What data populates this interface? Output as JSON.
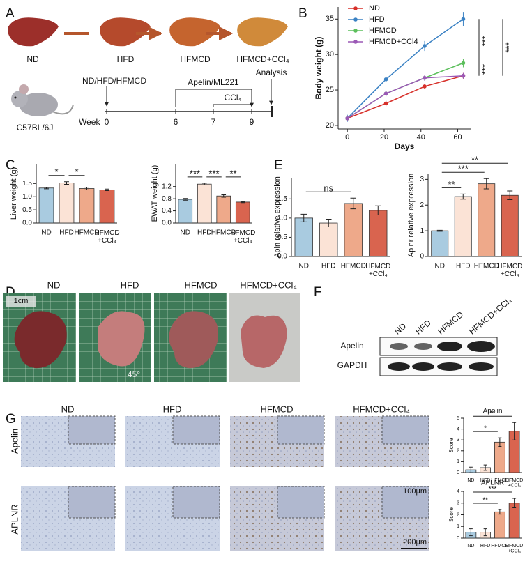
{
  "panel_labels": [
    "A",
    "B",
    "C",
    "D",
    "E",
    "F",
    "G"
  ],
  "panel_a": {
    "diets": [
      "ND",
      "HFD",
      "HFMCD",
      "HFMCD+CCl₄"
    ],
    "strain": "C57BL/6J",
    "diet_label": "ND/HFD/HFMCD",
    "treatment": "Apelin/ML221",
    "ccl4": "CCl₄",
    "analysis": "Analysis",
    "week_label": "Week",
    "weeks": [
      "0",
      "6",
      "7",
      "9"
    ]
  },
  "panel_d": {
    "groups": [
      "ND",
      "HFD",
      "HFMCD",
      "HFMCD+CCl₄"
    ],
    "scale": "1cm",
    "angle": "45°"
  },
  "panel_f": {
    "groups": [
      "ND",
      "HFD",
      "HFMCD",
      "HFMCD+CCl₄"
    ],
    "rows": [
      "Apelin",
      "GAPDH"
    ]
  },
  "panel_g": {
    "groups": [
      "ND",
      "HFD",
      "HFMCD",
      "HFMCD+CCl₄"
    ],
    "rows": [
      "Apelin",
      "APLNR"
    ],
    "scale_bars": [
      "100μm",
      "200μm"
    ]
  },
  "chart_data": [
    {
      "type": "line",
      "x_label": "Days",
      "y_label": "Body weight (g)",
      "x": [
        0,
        21,
        42,
        63
      ],
      "series": [
        {
          "name": "ND",
          "color": "#d7302a",
          "values": [
            21,
            23.1,
            25.5,
            27
          ],
          "errors": [
            0.4,
            0.4,
            0.3,
            0.4
          ]
        },
        {
          "name": "HFD",
          "color": "#3b82c4",
          "values": [
            21,
            26.5,
            31.2,
            35
          ],
          "errors": [
            0.5,
            0.4,
            0.7,
            1.0
          ]
        },
        {
          "name": "HFMCD",
          "color": "#5cbf5c",
          "values": [
            21,
            24.5,
            26.7,
            28.8
          ],
          "errors": [
            0.4,
            0.4,
            0.4,
            0.6
          ]
        },
        {
          "name": "HFMCD+CCl4",
          "color": "#9b59b6",
          "values": [
            21,
            24.5,
            26.7,
            27
          ],
          "errors": [
            0.4,
            0.4,
            0.4,
            0.4
          ]
        }
      ],
      "xlim": [
        -5,
        67
      ],
      "ylim": [
        19.5,
        36.7
      ],
      "xticks": [
        0,
        20,
        40,
        60
      ],
      "yticks": [
        20,
        25,
        30,
        35
      ],
      "legend": "upper left",
      "comparisons": [
        {
          "series": [
            "HFD",
            "HFMCD"
          ],
          "label": "***"
        },
        {
          "series": [
            "HFMCD",
            "HFMCD+CCl4"
          ],
          "label": "***"
        },
        {
          "series": [
            "HFD",
            "HFMCD+CCl4"
          ],
          "label": "***"
        }
      ]
    },
    {
      "type": "bar",
      "y_label": "Liver weight (g)",
      "categories": [
        "ND",
        "HFD",
        "HFMCD",
        "HFMCD\n+CCl₄"
      ],
      "values": [
        1.33,
        1.52,
        1.31,
        1.26
      ],
      "errors": [
        0.03,
        0.05,
        0.05,
        0.03
      ],
      "colors": [
        "#a9cbe0",
        "#fbe3d6",
        "#eea98a",
        "#d9644f"
      ],
      "ylim": [
        0,
        2.25
      ],
      "yticks": [
        {
          "value": 0,
          "label": "0.0"
        },
        {
          "value": 0.5,
          "label": "0.5"
        },
        {
          "value": 1,
          "label": "1.0"
        },
        {
          "value": 1.5,
          "label": "1.5"
        }
      ],
      "comparisons": [
        {
          "groups": [
            "ND",
            "HFD"
          ],
          "label": "*"
        },
        {
          "groups": [
            "HFD",
            "HFMCD"
          ],
          "label": "*"
        }
      ]
    },
    {
      "type": "bar",
      "y_label": "EWAT weight (g)",
      "categories": [
        "ND",
        "HFD",
        "HFMCD",
        "HFMCD\n+CCl₄"
      ],
      "values": [
        0.78,
        1.28,
        0.89,
        0.69
      ],
      "errors": [
        0.03,
        0.03,
        0.04,
        0.02
      ],
      "colors": [
        "#a9cbe0",
        "#fbe3d6",
        "#eea98a",
        "#d9644f"
      ],
      "ylim": [
        0,
        1.95
      ],
      "yticks": [
        {
          "value": 0,
          "label": "0.0"
        },
        {
          "value": 0.4,
          "label": "0.4"
        },
        {
          "value": 0.8,
          "label": "0.8"
        },
        {
          "value": 1.2,
          "label": "1.2"
        }
      ],
      "comparisons": [
        {
          "groups": [
            "ND",
            "HFD"
          ],
          "label": "***"
        },
        {
          "groups": [
            "HFD",
            "HFMCD"
          ],
          "label": "***"
        },
        {
          "groups": [
            "HFMCD",
            "HFMCD\n+CCl₄"
          ],
          "label": "**"
        }
      ]
    },
    {
      "type": "bar",
      "y_label": "Apln relative expression",
      "categories": [
        "ND",
        "HFD",
        "HFMCD",
        "HFMCD\n+CCl₄"
      ],
      "values": [
        1.0,
        0.87,
        1.38,
        1.2
      ],
      "errors": [
        0.1,
        0.1,
        0.14,
        0.12
      ],
      "colors": [
        "#a9cbe0",
        "#fbe3d6",
        "#eea98a",
        "#d9644f"
      ],
      "ylim": [
        0,
        2.05
      ],
      "yticks": [
        {
          "value": 0,
          "label": "0.0"
        },
        {
          "value": 0.5,
          "label": "0.5"
        },
        {
          "value": 1,
          "label": "1.0"
        },
        {
          "value": 1.5,
          "label": "1.5"
        }
      ],
      "comparisons": [
        {
          "groups": [
            "ND",
            "HFMCD"
          ],
          "label": "ns"
        }
      ]
    },
    {
      "type": "bar",
      "y_label": "Aplnr relative expression",
      "categories": [
        "ND",
        "HFD",
        "HFMCD",
        "HFMCD\n+CCl₄"
      ],
      "values": [
        1.0,
        2.33,
        2.83,
        2.38
      ],
      "errors": [
        0.02,
        0.1,
        0.2,
        0.17
      ],
      "colors": [
        "#a9cbe0",
        "#fbe3d6",
        "#eea98a",
        "#d9644f"
      ],
      "ylim": [
        0,
        3.2
      ],
      "yticks": [
        0,
        1,
        2,
        3
      ],
      "comparisons": [
        {
          "groups": [
            "ND",
            "HFD"
          ],
          "label": "**"
        },
        {
          "groups": [
            "ND",
            "HFMCD"
          ],
          "label": "***"
        },
        {
          "groups": [
            "ND",
            "HFMCD\n+CCl₄"
          ],
          "label": "**"
        }
      ]
    },
    {
      "type": "bar",
      "title": "Apelin",
      "y_label": "Score",
      "categories": [
        "ND",
        "HFD",
        "HFMCD",
        "HFMCD\n+CCl₄"
      ],
      "values": [
        0.25,
        0.45,
        2.8,
        3.8
      ],
      "errors": [
        0.25,
        0.25,
        0.4,
        0.8
      ],
      "colors": [
        "#a9cbe0",
        "#fbe3d6",
        "#eea98a",
        "#d9644f"
      ],
      "ylim": [
        0,
        5
      ],
      "yticks": [
        0,
        1,
        2,
        3,
        4,
        5
      ],
      "comparisons": [
        {
          "groups": [
            "ND",
            "HFMCD"
          ],
          "label": "*"
        },
        {
          "groups": [
            "ND",
            "HFMCD\n+CCl₄"
          ],
          "label": "**"
        }
      ]
    },
    {
      "type": "bar",
      "title": "APLNR",
      "y_label": "Score",
      "categories": [
        "ND",
        "HFD",
        "HFMCD",
        "HFMCD\n+CCl₄"
      ],
      "values": [
        0.5,
        0.5,
        2.25,
        3.0
      ],
      "errors": [
        0.3,
        0.3,
        0.2,
        0.4
      ],
      "colors": [
        "#a9cbe0",
        "#fbe3d6",
        "#eea98a",
        "#d9644f"
      ],
      "ylim": [
        0,
        4
      ],
      "yticks": [
        0,
        1,
        2,
        3,
        4
      ],
      "comparisons": [
        {
          "groups": [
            "ND",
            "HFMCD"
          ],
          "label": "**"
        },
        {
          "groups": [
            "ND",
            "HFMCD\n+CCl₄"
          ],
          "label": "***"
        }
      ]
    }
  ]
}
